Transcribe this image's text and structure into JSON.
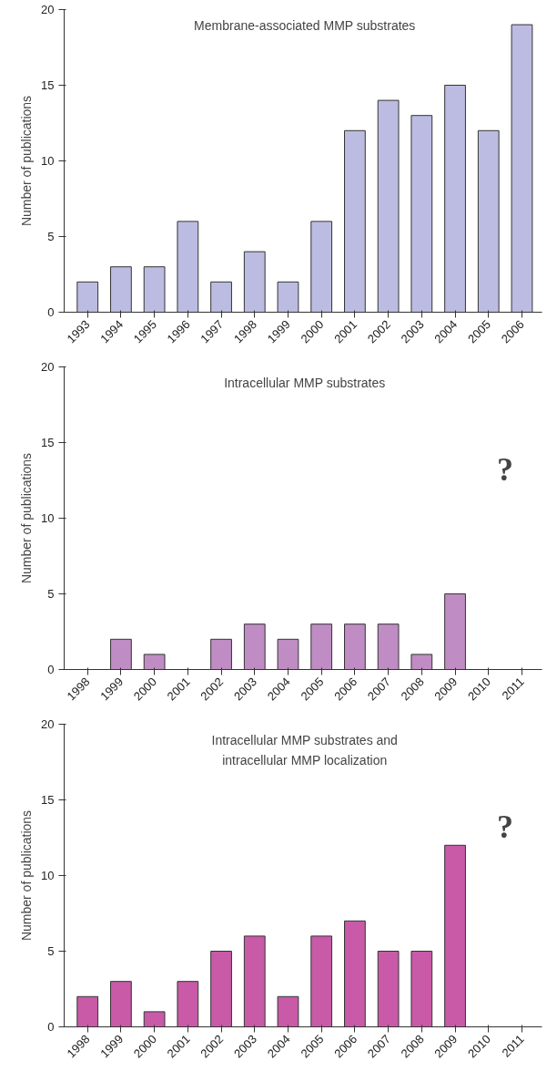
{
  "chart_data": [
    {
      "type": "bar",
      "title": "Membrane-associated MMP substrates",
      "ylabel": "Number of publications",
      "categories": [
        "1993",
        "1994",
        "1995",
        "1996",
        "1997",
        "1998",
        "1999",
        "2000",
        "2001",
        "2002",
        "2003",
        "2004",
        "2005",
        "2006"
      ],
      "values": [
        2,
        3,
        3,
        6,
        2,
        4,
        2,
        6,
        12,
        14,
        13,
        15,
        12,
        19
      ],
      "color": "#bcbce2",
      "ylim": [
        0,
        20
      ],
      "yticks": [
        0,
        5,
        10,
        15,
        20
      ],
      "grid": false
    },
    {
      "type": "bar",
      "title": "Intracellular MMP substrates",
      "ylabel": "Number of publications",
      "categories": [
        "1998",
        "1999",
        "2000",
        "2001",
        "2002",
        "2003",
        "2004",
        "2005",
        "2006",
        "2007",
        "2008",
        "2009",
        "2010",
        "2011"
      ],
      "values": [
        null,
        2,
        1,
        null,
        2,
        3,
        2,
        3,
        3,
        3,
        1,
        5,
        null,
        null
      ],
      "color": "#c08cc4",
      "ylim": [
        0,
        20
      ],
      "yticks": [
        0,
        5,
        10,
        15,
        20
      ],
      "grid": false,
      "annotations": [
        "?"
      ]
    },
    {
      "type": "bar",
      "title": "Intracellular MMP substrates and intracellular MMP localization",
      "ylabel": "Number of publications",
      "categories": [
        "1998",
        "1999",
        "2000",
        "2001",
        "2002",
        "2003",
        "2004",
        "2005",
        "2006",
        "2007",
        "2008",
        "2009",
        "2010",
        "2011"
      ],
      "values": [
        2,
        3,
        1,
        3,
        5,
        6,
        2,
        6,
        7,
        5,
        5,
        12,
        null,
        null
      ],
      "color": "#c85aa8",
      "ylim": [
        0,
        20
      ],
      "yticks": [
        0,
        5,
        10,
        15,
        20
      ],
      "grid": false,
      "annotations": [
        "?"
      ]
    }
  ]
}
